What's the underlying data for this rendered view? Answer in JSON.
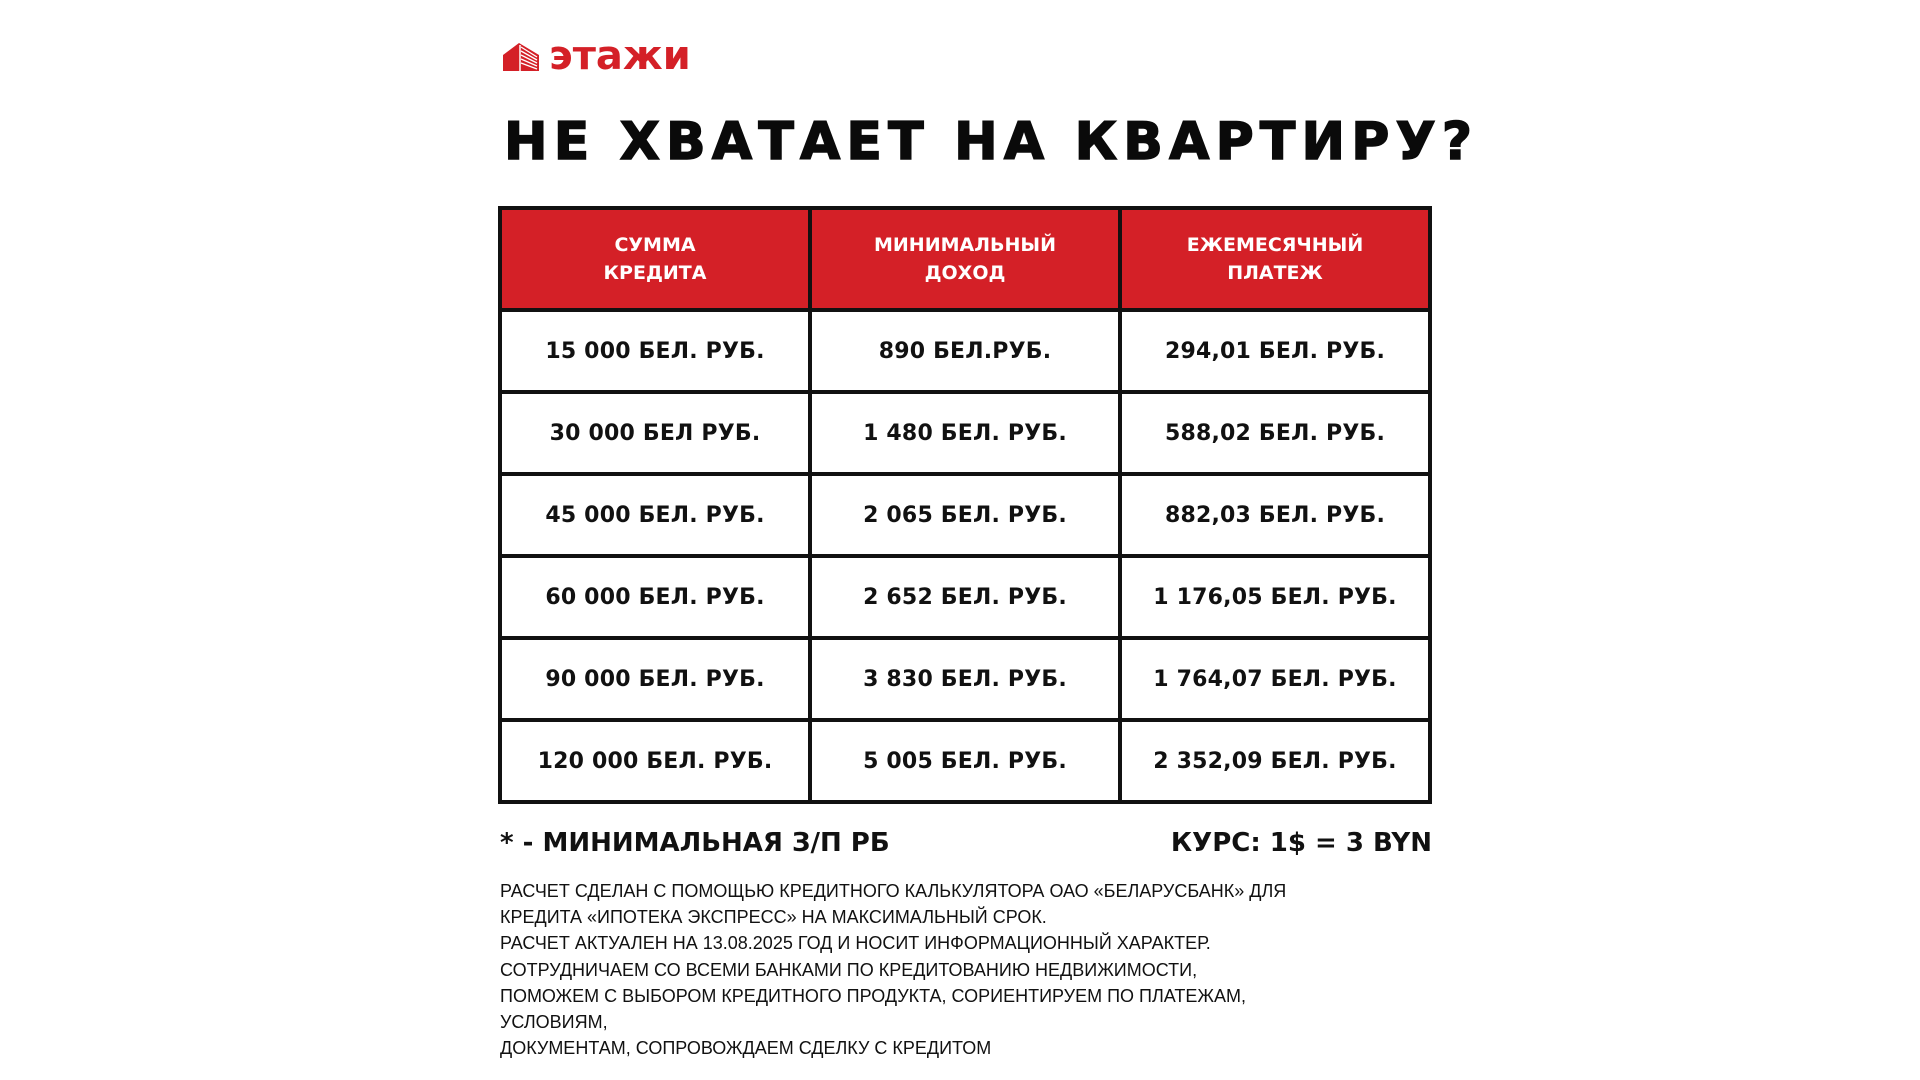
{
  "brand": {
    "name": "этажи",
    "color": "#d42027",
    "icon": "building-logo-icon"
  },
  "title": "НЕ ХВАТАЕТ НА КВАРТИРУ?",
  "table": {
    "headers": [
      [
        "СУММА",
        "КРЕДИТА"
      ],
      [
        "МИНИМАЛЬНЫЙ",
        "ДОХОД"
      ],
      [
        "ЕЖЕМЕСЯЧНЫЙ",
        "ПЛАТЕЖ"
      ]
    ],
    "header_color": "#d42027",
    "rows": [
      [
        "15 000 БЕЛ. РУБ.",
        "890 БЕЛ.РУБ.",
        "294,01 БЕЛ. РУБ."
      ],
      [
        "30 000 БЕЛ РУБ.",
        "1 480 БЕЛ. РУБ.",
        "588,02 БЕЛ. РУБ."
      ],
      [
        "45 000 БЕЛ. РУБ.",
        "2 065 БЕЛ. РУБ.",
        "882,03 БЕЛ. РУБ."
      ],
      [
        "60 000 БЕЛ. РУБ.",
        "2 652 БЕЛ. РУБ.",
        "1 176,05 БЕЛ. РУБ."
      ],
      [
        "90 000 БЕЛ. РУБ.",
        "3 830 БЕЛ. РУБ.",
        "1 764,07 БЕЛ. РУБ."
      ],
      [
        "120 000 БЕЛ. РУБ.",
        "5 005 БЕЛ. РУБ.",
        "2 352,09 БЕЛ. РУБ."
      ]
    ]
  },
  "footnote": "* - МИНИМАЛЬНАЯ З/П РБ",
  "rate": "КУРС: 1$ = 3 BYN",
  "disclaimer": [
    "РАСЧЕТ СДЕЛАН С ПОМОЩЬЮ КРЕДИТНОГО КАЛЬКУЛЯТОРА ОАО «БЕЛАРУСБАНК» ДЛЯ",
    "КРЕДИТА «ИПОТЕКА ЭКСПРЕСС» НА МАКСИМАЛЬНЫЙ СРОК.",
    "РАСЧЕТ АКТУАЛЕН НА 13.08.2025 ГОД И НОСИТ ИНФОРМАЦИОННЫЙ ХАРАКТЕР.",
    "СОТРУДНИЧАЕМ СО ВСЕМИ БАНКАМИ ПО КРЕДИТОВАНИЮ НЕДВИЖИМОСТИ,",
    "ПОМОЖЕМ С ВЫБОРОМ КРЕДИТНОГО ПРОДУКТА, СОРИЕНТИРУЕМ ПО ПЛАТЕЖАМ,",
    "УСЛОВИЯМ,",
    "ДОКУМЕНТАМ, СОПРОВОЖДАЕМ СДЕЛКУ С КРЕДИТОМ"
  ]
}
